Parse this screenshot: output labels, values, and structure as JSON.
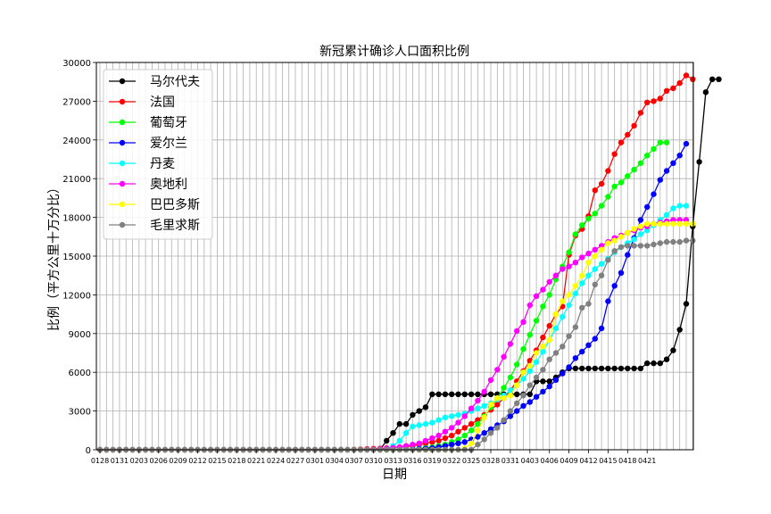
{
  "chart_data": {
    "type": "line",
    "title": "新冠累计确诊人口面积比例",
    "xlabel": "日期",
    "ylabel": "比例（平方公里十万分比）",
    "ylim": [
      0,
      30000
    ],
    "yticks": [
      0,
      3000,
      6000,
      9000,
      12000,
      15000,
      18000,
      21000,
      24000,
      27000,
      30000
    ],
    "x_tick_labels": [
      "0128",
      "0131",
      "0203",
      "0206",
      "0209",
      "0212",
      "0215",
      "0218",
      "0221",
      "0224",
      "0227",
      "0301",
      "0304",
      "0307",
      "0310",
      "0313",
      "0316",
      "0319",
      "0322",
      "0325",
      "0328",
      "0331",
      "0403",
      "0406",
      "0409",
      "0412",
      "0415",
      "0418",
      "0421"
    ],
    "grid": true,
    "legend_position": "upper-left",
    "series": [
      {
        "name": "马尔代夫",
        "color": "#000000",
        "values": [
          0,
          0,
          0,
          0,
          0,
          0,
          0,
          0,
          0,
          0,
          0,
          0,
          0,
          0,
          0,
          0,
          0,
          0,
          0,
          0,
          0,
          0,
          0,
          0,
          0,
          0,
          0,
          0,
          0,
          0,
          0,
          0,
          0,
          0,
          0,
          0,
          0,
          0,
          0,
          0,
          0,
          0,
          0,
          0,
          700,
          1300,
          2000,
          2000,
          2700,
          3000,
          3300,
          4300,
          4300,
          4300,
          4300,
          4300,
          4300,
          4300,
          4300,
          4300,
          4300,
          4300,
          4300,
          4300,
          4300,
          4300,
          4300,
          5300,
          5300,
          5300,
          5600,
          6000,
          6300,
          6300,
          6300,
          6300,
          6300,
          6300,
          6300,
          6300,
          6300,
          6300,
          6300,
          6300,
          6700,
          6700,
          6700,
          7000,
          7700,
          9300,
          11300,
          17300,
          22300,
          27700,
          28700,
          28700
        ]
      },
      {
        "name": "法国",
        "color": "#ff0000",
        "values": [
          0,
          0,
          0,
          0,
          0,
          0,
          0,
          0,
          0,
          0,
          0,
          0,
          0,
          0,
          0,
          0,
          0,
          0,
          0,
          0,
          0,
          0,
          0,
          0,
          0,
          0,
          0,
          0,
          0,
          0,
          0,
          0,
          0,
          0,
          0,
          0,
          0,
          0,
          0,
          20,
          40,
          60,
          80,
          100,
          130,
          160,
          200,
          250,
          300,
          400,
          500,
          600,
          700,
          900,
          1100,
          1400,
          1700,
          2000,
          2300,
          2700,
          3100,
          3500,
          4000,
          4600,
          5300,
          6100,
          6900,
          7700,
          8700,
          9600,
          10500,
          11100,
          15100,
          16600,
          17100,
          18100,
          20100,
          20600,
          21600,
          22900,
          23800,
          24400,
          25100,
          26100,
          26900,
          27000,
          27200,
          27800,
          28000,
          28400,
          29000,
          28700
        ]
      },
      {
        "name": "葡萄牙",
        "color": "#00ff00",
        "values": [
          0,
          0,
          0,
          0,
          0,
          0,
          0,
          0,
          0,
          0,
          0,
          0,
          0,
          0,
          0,
          0,
          0,
          0,
          0,
          0,
          0,
          0,
          0,
          0,
          0,
          0,
          0,
          0,
          0,
          0,
          0,
          0,
          0,
          0,
          0,
          0,
          0,
          0,
          0,
          0,
          0,
          0,
          0,
          0,
          0,
          0,
          10,
          30,
          60,
          100,
          150,
          200,
          300,
          400,
          600,
          800,
          1100,
          1500,
          2000,
          2600,
          3300,
          4000,
          4800,
          5600,
          6600,
          7800,
          8900,
          10000,
          11100,
          12000,
          13200,
          14200,
          15300,
          16700,
          17400,
          17900,
          18300,
          18900,
          19600,
          20400,
          20700,
          21200,
          21700,
          22200,
          22800,
          23300,
          23800,
          23800
        ]
      },
      {
        "name": "爱尔兰",
        "color": "#0000ff",
        "values": [
          0,
          0,
          0,
          0,
          0,
          0,
          0,
          0,
          0,
          0,
          0,
          0,
          0,
          0,
          0,
          0,
          0,
          0,
          0,
          0,
          0,
          0,
          0,
          0,
          0,
          0,
          0,
          0,
          0,
          0,
          0,
          0,
          0,
          0,
          0,
          0,
          0,
          0,
          0,
          0,
          0,
          0,
          0,
          0,
          0,
          0,
          10,
          20,
          40,
          60,
          90,
          130,
          200,
          300,
          400,
          500,
          600,
          800,
          1000,
          1300,
          1600,
          1900,
          2200,
          2600,
          3000,
          3400,
          3700,
          4100,
          4500,
          4900,
          5400,
          5900,
          6400,
          7100,
          7600,
          8100,
          8600,
          9400,
          11500,
          12700,
          13700,
          15100,
          16400,
          17800,
          18800,
          19800,
          20900,
          21600,
          22200,
          22800,
          23700
        ]
      },
      {
        "name": "丹麦",
        "color": "#00ffff",
        "values": [
          0,
          0,
          0,
          0,
          0,
          0,
          0,
          0,
          0,
          0,
          0,
          0,
          0,
          0,
          0,
          0,
          0,
          0,
          0,
          0,
          0,
          0,
          0,
          0,
          0,
          0,
          0,
          0,
          0,
          0,
          0,
          0,
          0,
          0,
          0,
          0,
          0,
          0,
          0,
          0,
          0,
          0,
          0,
          20,
          100,
          300,
          700,
          1300,
          1800,
          1900,
          2000,
          2100,
          2300,
          2500,
          2600,
          2700,
          2800,
          3000,
          3200,
          3400,
          3600,
          3900,
          4200,
          4600,
          5000,
          5500,
          6100,
          6800,
          7600,
          8500,
          9400,
          10300,
          11200,
          12100,
          12900,
          13500,
          14000,
          14400,
          14800,
          15300,
          15700,
          16000,
          16300,
          16700,
          17000,
          17400,
          17800,
          18200,
          18700,
          18900,
          18900
        ]
      },
      {
        "name": "奥地利",
        "color": "#ff00ff",
        "values": [
          0,
          0,
          0,
          0,
          0,
          0,
          0,
          0,
          0,
          0,
          0,
          0,
          0,
          0,
          0,
          0,
          0,
          0,
          0,
          0,
          0,
          0,
          0,
          0,
          0,
          0,
          0,
          0,
          0,
          0,
          0,
          0,
          0,
          0,
          0,
          0,
          0,
          0,
          0,
          0,
          10,
          20,
          40,
          60,
          100,
          150,
          200,
          300,
          400,
          500,
          700,
          900,
          1100,
          1400,
          1700,
          2100,
          2600,
          3200,
          3800,
          4500,
          5400,
          6200,
          7200,
          8200,
          9200,
          9900,
          11200,
          11900,
          12400,
          13000,
          13500,
          14000,
          14200,
          14500,
          14900,
          15200,
          15500,
          15800,
          16100,
          16400,
          16600,
          16800,
          17000,
          17200,
          17300,
          17500,
          17600,
          17700,
          17800,
          17800,
          17800
        ]
      },
      {
        "name": "巴巴多斯",
        "color": "#ffff00",
        "values": [
          0,
          0,
          0,
          0,
          0,
          0,
          0,
          0,
          0,
          0,
          0,
          0,
          0,
          0,
          0,
          0,
          0,
          0,
          0,
          0,
          0,
          0,
          0,
          0,
          0,
          0,
          0,
          0,
          0,
          0,
          0,
          0,
          0,
          0,
          0,
          0,
          0,
          0,
          0,
          0,
          0,
          0,
          0,
          0,
          0,
          0,
          0,
          0,
          0,
          0,
          0,
          0,
          0,
          0,
          0,
          0,
          100,
          500,
          1500,
          2500,
          3500,
          4000,
          4000,
          4200,
          5000,
          6000,
          6500,
          7500,
          8000,
          8500,
          10500,
          11500,
          12000,
          12700,
          13500,
          14500,
          15000,
          15500,
          16000,
          16200,
          16500,
          16800,
          17100,
          17300,
          17500,
          17500,
          17500,
          17500,
          17500,
          17500,
          17500,
          17500
        ]
      },
      {
        "name": "毛里求斯",
        "color": "#808080",
        "values": [
          0,
          0,
          0,
          0,
          0,
          0,
          0,
          0,
          0,
          0,
          0,
          0,
          0,
          0,
          0,
          0,
          0,
          0,
          0,
          0,
          0,
          0,
          0,
          0,
          0,
          0,
          0,
          0,
          0,
          0,
          0,
          0,
          0,
          0,
          0,
          0,
          0,
          0,
          0,
          0,
          0,
          0,
          0,
          0,
          0,
          0,
          0,
          0,
          0,
          0,
          0,
          0,
          0,
          0,
          0,
          0,
          0,
          0,
          400,
          800,
          1300,
          1700,
          2300,
          3000,
          3600,
          4200,
          5000,
          5600,
          6200,
          7000,
          7500,
          8000,
          8800,
          9500,
          11000,
          11300,
          12800,
          13500,
          14700,
          15400,
          15700,
          15800,
          15800,
          15800,
          15800,
          15900,
          16000,
          16100,
          16100,
          16100,
          16200,
          16200
        ]
      }
    ]
  }
}
